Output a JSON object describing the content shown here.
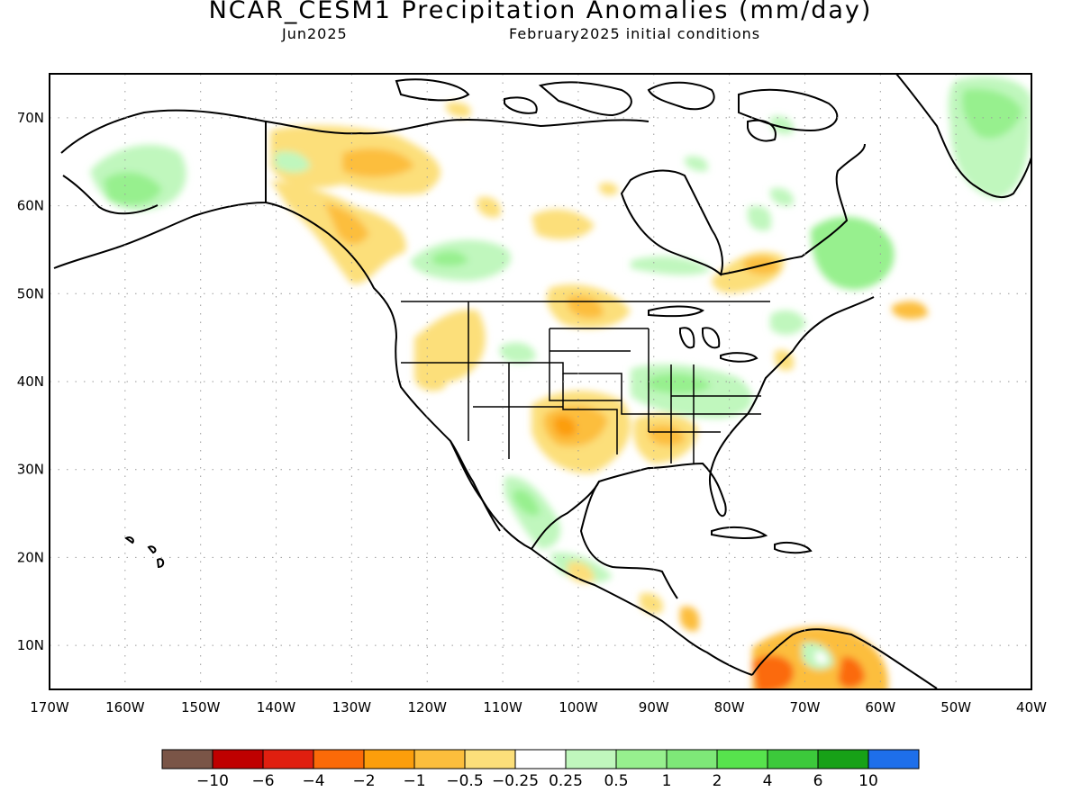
{
  "title": "NCAR_CESM1 Precipitation Anomalies (mm/day)",
  "subtitle_left": "Jun2025",
  "subtitle_right": "February2025 initial conditions",
  "map": {
    "lon_labels": [
      "170W",
      "160W",
      "150W",
      "140W",
      "130W",
      "120W",
      "110W",
      "100W",
      "90W",
      "80W",
      "70W",
      "60W",
      "50W",
      "40W"
    ],
    "lat_labels": [
      "70N",
      "60N",
      "50N",
      "40N",
      "30N",
      "20N",
      "10N"
    ],
    "grid": "dotted",
    "lon_range": [
      -170,
      -40
    ],
    "lat_range": [
      5,
      75
    ]
  },
  "colorbar": {
    "colors": [
      "#7a5547",
      "#bf0000",
      "#e01f0f",
      "#fb6a08",
      "#fc9e0b",
      "#fcbe3c",
      "#fcdf7a",
      "#ffffff",
      "#c0f7bd",
      "#97f08e",
      "#7ee878",
      "#57e34d",
      "#3cc93b",
      "#17a117",
      "#1e6fea"
    ],
    "labels": [
      "−10",
      "−6",
      "−4",
      "−2",
      "−1",
      "−0.5",
      "−0.25",
      "0.25",
      "0.5",
      "1",
      "2",
      "4",
      "6",
      "10"
    ]
  }
}
